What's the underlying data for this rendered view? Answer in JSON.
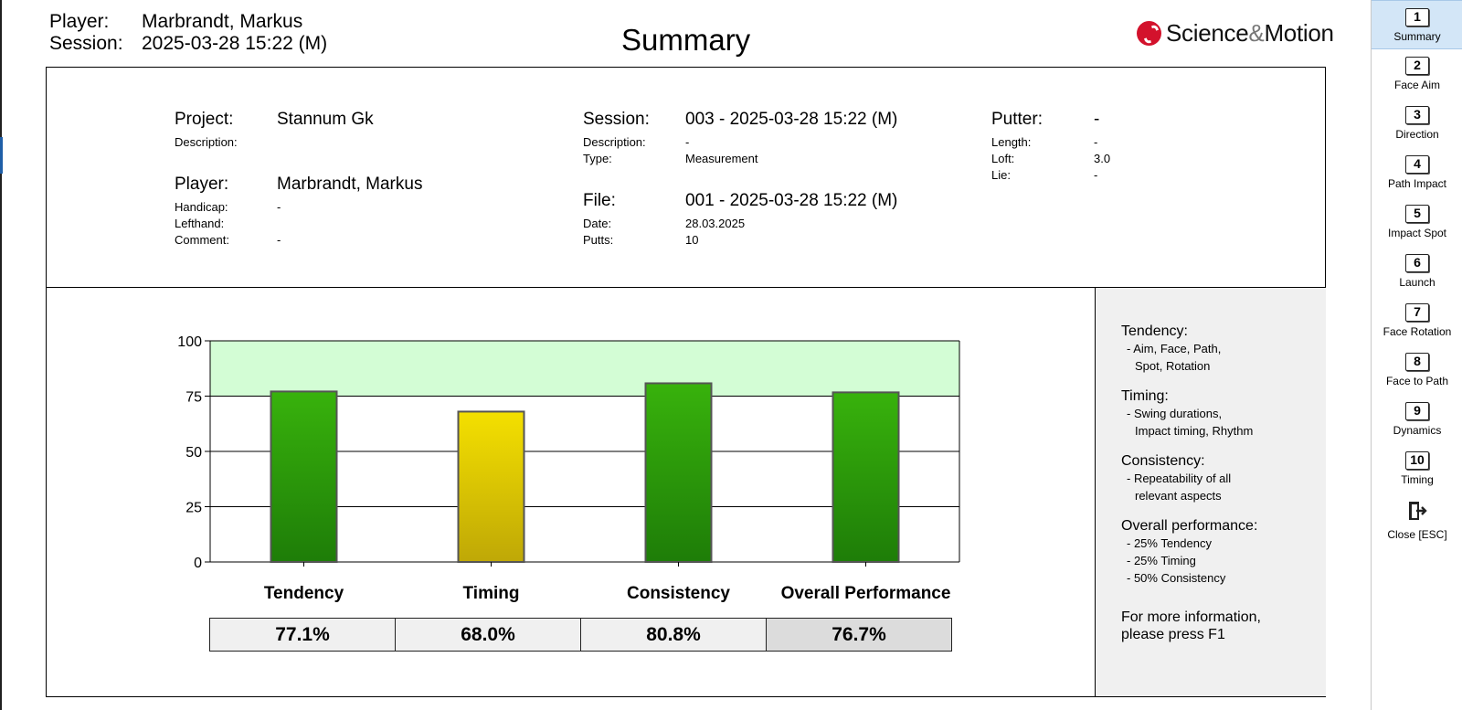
{
  "header": {
    "player_label": "Player:",
    "player_value": "Marbrandt, Markus",
    "session_label": "Session:",
    "session_value": "2025-03-28 15:22 (M)",
    "title": "Summary",
    "logo_text_left": "Science",
    "logo_amp": "&",
    "logo_text_right": "Motion"
  },
  "info": {
    "project_label": "Project:",
    "project_value": "Stannum Gk",
    "project_desc_label": "Description:",
    "player_label": "Player:",
    "player_value": "Marbrandt, Markus",
    "handicap_label": "Handicap:",
    "handicap_value": "-",
    "lefthand_label": "Lefthand:",
    "comment_label": "Comment:",
    "comment_value": "-",
    "session_label": "Session:",
    "session_value": "003 -  2025-03-28 15:22 (M)",
    "session_desc_label": "Description:",
    "session_desc_value": "-",
    "type_label": "Type:",
    "type_value": "Measurement",
    "file_label": "File:",
    "file_value": "001 -  2025-03-28 15:22 (M)",
    "date_label": "Date:",
    "date_value": "28.03.2025",
    "putts_label": "Putts:",
    "putts_value": "10",
    "putter_label": "Putter:",
    "putter_value": "-",
    "length_label": "Length:",
    "length_value": "-",
    "loft_label": "Loft:",
    "loft_value": "3.0",
    "lie_label": "Lie:",
    "lie_value": "-"
  },
  "chart_data": {
    "type": "bar",
    "categories": [
      "Tendency",
      "Timing",
      "Consistency",
      "Overall Performance"
    ],
    "values": [
      77.1,
      68.0,
      80.8,
      76.7
    ],
    "value_labels": [
      "77.1%",
      "68.0%",
      "80.8%",
      "76.7%"
    ],
    "ylim": [
      0,
      100
    ],
    "yticks": [
      0,
      25,
      50,
      75,
      100
    ],
    "target_band": [
      75,
      100
    ],
    "grid": true,
    "colors": {
      "pass_top": "#38b20c",
      "pass_bottom": "#1e7d08",
      "warn_top": "#f4e000",
      "warn_bottom": "#bfa806",
      "band": "#d3fdd5"
    }
  },
  "legend": {
    "tendency_h": "Tendency:",
    "tendency_1": "- Aim, Face, Path,",
    "tendency_2": "Spot, Rotation",
    "timing_h": "Timing:",
    "timing_1": "- Swing durations,",
    "timing_2": "Impact timing, Rhythm",
    "consistency_h": "Consistency:",
    "consistency_1": "- Repeatability of all",
    "consistency_2": "relevant aspects",
    "overall_h": "Overall performance:",
    "overall_1": "- 25% Tendency",
    "overall_2": "- 25% Timing",
    "overall_3": "- 50% Consistency",
    "more_1": "For more information,",
    "more_2": "please press F1"
  },
  "nav": {
    "items": [
      {
        "num": "1",
        "label": "Summary",
        "active": true
      },
      {
        "num": "2",
        "label": "Face Aim"
      },
      {
        "num": "3",
        "label": "Direction"
      },
      {
        "num": "4",
        "label": "Path Impact"
      },
      {
        "num": "5",
        "label": "Impact Spot"
      },
      {
        "num": "6",
        "label": "Launch"
      },
      {
        "num": "7",
        "label": "Face Rotation"
      },
      {
        "num": "8",
        "label": "Face to Path"
      },
      {
        "num": "9",
        "label": "Dynamics"
      },
      {
        "num": "10",
        "label": "Timing"
      }
    ],
    "close_label": "Close [ESC]",
    "close_icon": "exit-door-icon"
  }
}
